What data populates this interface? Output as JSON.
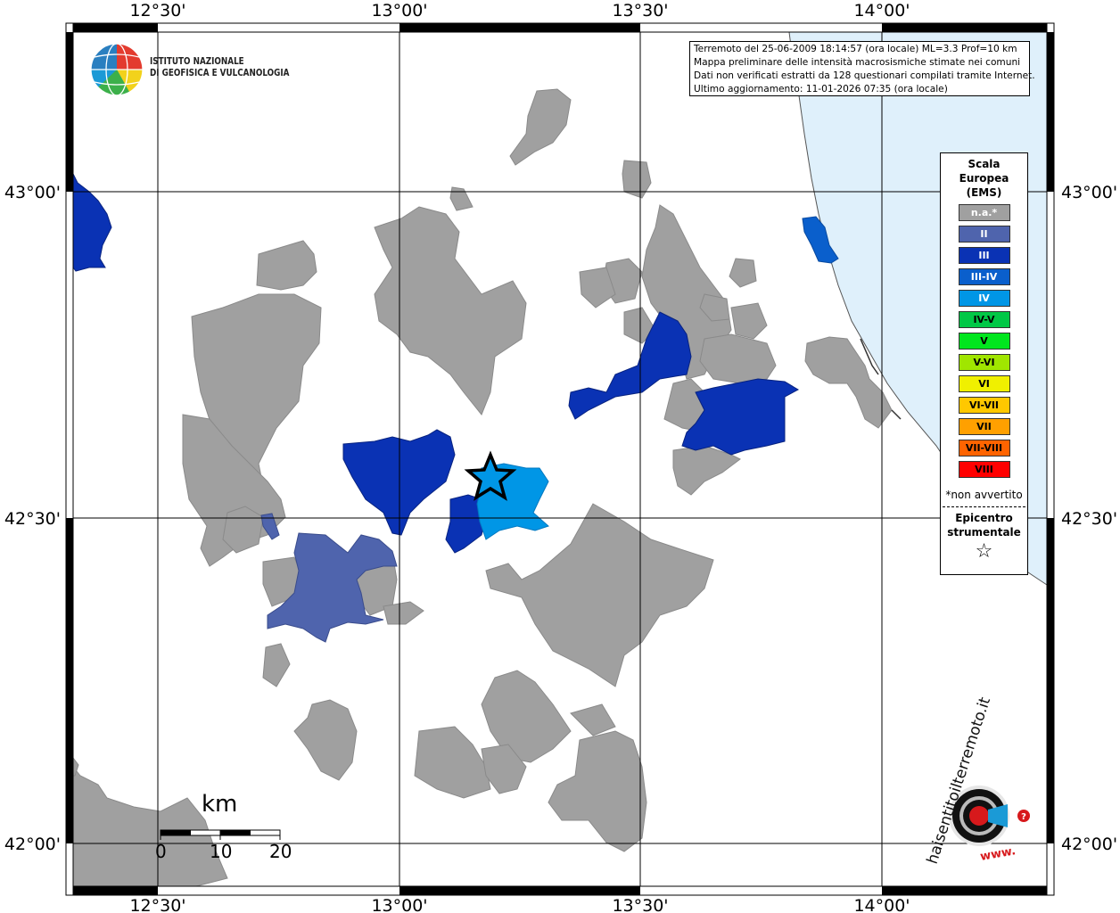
{
  "map": {
    "ticks_top": [
      "12°30'",
      "13°00'",
      "13°30'",
      "14°00'"
    ],
    "ticks_bottom": [
      "12°30'",
      "13°00'",
      "13°30'",
      "14°00'"
    ],
    "ticks_left": [
      "43°00'",
      "42°30'",
      "42°00'"
    ],
    "ticks_right": [
      "43°00'",
      "42°30'",
      "42°00'"
    ],
    "sea_color": "#dff0fb",
    "na_color": "#a0a0a0"
  },
  "info_box": {
    "line1": "Terremoto del 25-06-2009 18:14:57 (ora locale) ML=3.3 Prof=10 km",
    "line2": "Mappa preliminare delle intensità macrosismiche stimate nei comuni",
    "line3": "Dati non verificati estratti da 128 questionari compilati tramite Internet.",
    "line4": "Ultimo aggiornamento: 11-01-2026 07:35 (ora locale)"
  },
  "institute": {
    "line1": "ISTITUTO NAZIONALE",
    "line2": "DI GEOFISICA E VULCANOLOGIA"
  },
  "legend": {
    "title1": "Scala",
    "title2": "Europea",
    "title3": "(EMS)",
    "items": [
      {
        "label": "n.a.*",
        "color": "#a0a0a0",
        "text_color": "#ffffff"
      },
      {
        "label": "II",
        "color": "#4f64ad",
        "text_color": "#ffffff"
      },
      {
        "label": "III",
        "color": "#0a32b4",
        "text_color": "#ffffff"
      },
      {
        "label": "III-IV",
        "color": "#0a5fcc",
        "text_color": "#ffffff"
      },
      {
        "label": "IV",
        "color": "#0096e6",
        "text_color": "#ffffff"
      },
      {
        "label": "IV-V",
        "color": "#00c846",
        "text_color": "#000000"
      },
      {
        "label": "V",
        "color": "#00e61e",
        "text_color": "#000000"
      },
      {
        "label": "V-VI",
        "color": "#a0e600",
        "text_color": "#000000"
      },
      {
        "label": "VI",
        "color": "#f0f000",
        "text_color": "#000000"
      },
      {
        "label": "VI-VII",
        "color": "#ffc800",
        "text_color": "#000000"
      },
      {
        "label": "VII",
        "color": "#ffa000",
        "text_color": "#000000"
      },
      {
        "label": "VII-VIII",
        "color": "#ff6400",
        "text_color": "#000000"
      },
      {
        "label": "VIII",
        "color": "#ff0000",
        "text_color": "#000000"
      }
    ],
    "note": "*non avvertito",
    "epicenter1": "Epicentro",
    "epicenter2": "strumentale"
  },
  "scale_bar": {
    "unit": "km",
    "labels": [
      "0",
      "10",
      "20"
    ]
  },
  "logo_hsit": {
    "text": "haisentitoilterremoto.it",
    "www": "www."
  }
}
